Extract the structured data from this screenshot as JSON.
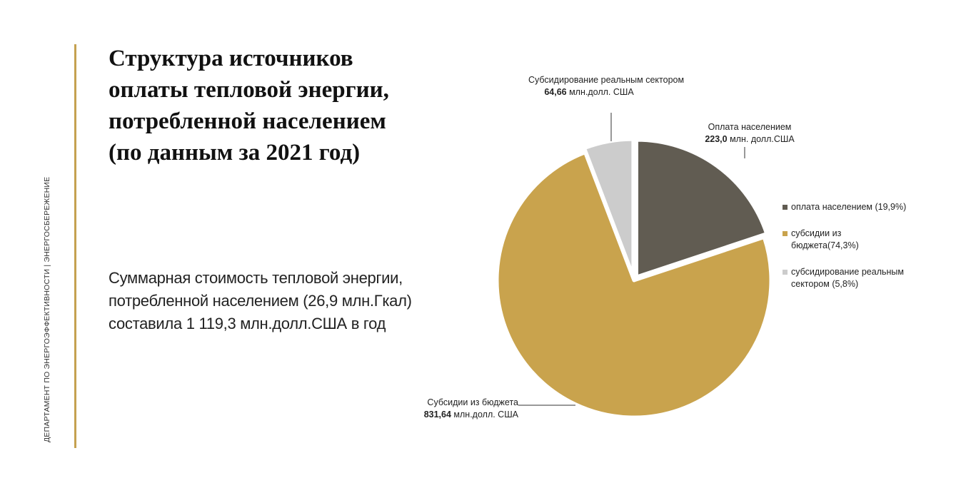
{
  "sidebar_label": "ДЕПАРТАМЕНТ ПО ЭНЕРГОЭФФЕКТИВНОСТИ | ЭНЕРГОСБЕРЕЖЕНИЕ",
  "title_lines": [
    "Структура источников",
    "оплаты тепловой энергии,",
    "потребленной  населением",
    "(по данным за 2021 год)"
  ],
  "summary_lines": [
    "Суммарная стоимость тепловой энергии,",
    "потребленной населением (26,9 млн.Гкал)",
    "составила 1 119,3 млн.долл.США в год"
  ],
  "chart_data": {
    "type": "pie",
    "start_angle_deg": 0,
    "slices": [
      {
        "legend": "оплата населением (19,9%)",
        "percent": 19.9,
        "value": 223.0,
        "color": "#615c52",
        "callout_name": "Оплата населением",
        "callout_value": "223,0",
        "callout_unit": " млн. долл.США"
      },
      {
        "legend": "субсидии из бюджета(74,3%)",
        "percent": 74.3,
        "value": 831.64,
        "color": "#c9a34d",
        "callout_name": "Субсидии из бюджета",
        "callout_value": "831,64",
        "callout_unit": " млн.долл. США"
      },
      {
        "legend": "субсидирование реальным сектором (5,8%)",
        "percent": 5.8,
        "value": 64.66,
        "color": "#cccccc",
        "callout_name": "Субсидирование реальным сектором",
        "callout_value": "64,66",
        "callout_unit": " млн.долл. США"
      }
    ]
  }
}
